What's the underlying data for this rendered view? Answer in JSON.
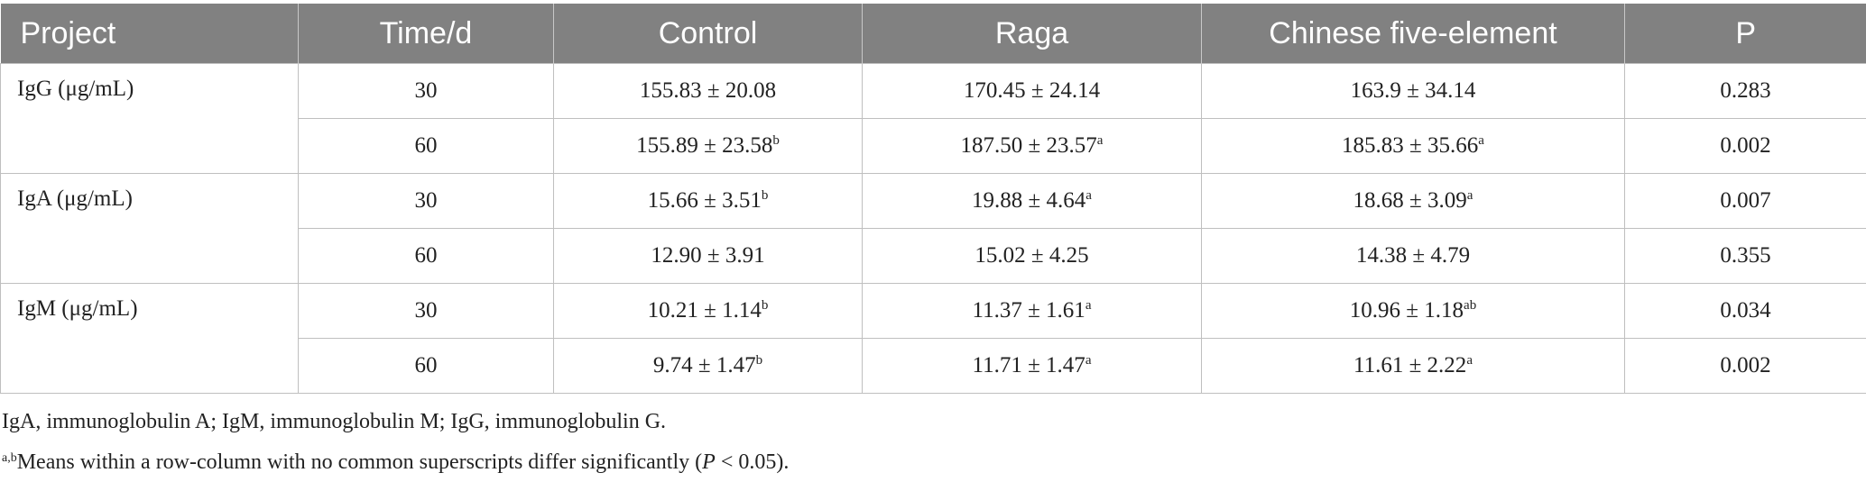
{
  "header": {
    "project": "Project",
    "time": "Time/d",
    "control": "Control",
    "raga": "Raga",
    "five_element": "Chinese five-element",
    "p": "P"
  },
  "rows": [
    {
      "project": "IgG (μg/mL)",
      "time": "30",
      "control": "155.83 ± 20.08",
      "control_sup": "",
      "raga": "170.45 ± 24.14",
      "raga_sup": "",
      "five": "163.9 ± 34.14",
      "five_sup": "",
      "p": "0.283"
    },
    {
      "project": "",
      "time": "60",
      "control": "155.89 ± 23.58",
      "control_sup": "b",
      "raga": "187.50 ± 23.57",
      "raga_sup": "a",
      "five": "185.83 ± 35.66",
      "five_sup": "a",
      "p": "0.002"
    },
    {
      "project": "IgA (μg/mL)",
      "time": "30",
      "control": "15.66 ± 3.51",
      "control_sup": "b",
      "raga": "19.88 ± 4.64",
      "raga_sup": "a",
      "five": "18.68 ± 3.09",
      "five_sup": "a",
      "p": "0.007"
    },
    {
      "project": "",
      "time": "60",
      "control": "12.90 ± 3.91",
      "control_sup": "",
      "raga": "15.02 ± 4.25",
      "raga_sup": "",
      "five": "14.38 ± 4.79",
      "five_sup": "",
      "p": "0.355"
    },
    {
      "project": "IgM (μg/mL)",
      "time": "30",
      "control": "10.21 ± 1.14",
      "control_sup": "b",
      "raga": "11.37 ± 1.61",
      "raga_sup": "a",
      "five": "10.96 ± 1.18",
      "five_sup": "ab",
      "p": "0.034"
    },
    {
      "project": "",
      "time": "60",
      "control": "9.74 ± 1.47",
      "control_sup": "b",
      "raga": "11.71 ± 1.47",
      "raga_sup": "a",
      "five": "11.61 ± 2.22",
      "five_sup": "a",
      "p": "0.002"
    }
  ],
  "notes": {
    "abbrev": "IgA, immunoglobulin A; IgM, immunoglobulin M; IgG, immunoglobulin G.",
    "sig_sup": "a,b",
    "sig_text_a": "Means within a row-column with no common superscripts differ significantly (",
    "sig_p": "P",
    "sig_text_b": " < 0.05)."
  },
  "colors": {
    "header_bg": "#818181",
    "header_text": "#ffffff",
    "grid": "#bfbfbf",
    "body_text": "#222222"
  }
}
